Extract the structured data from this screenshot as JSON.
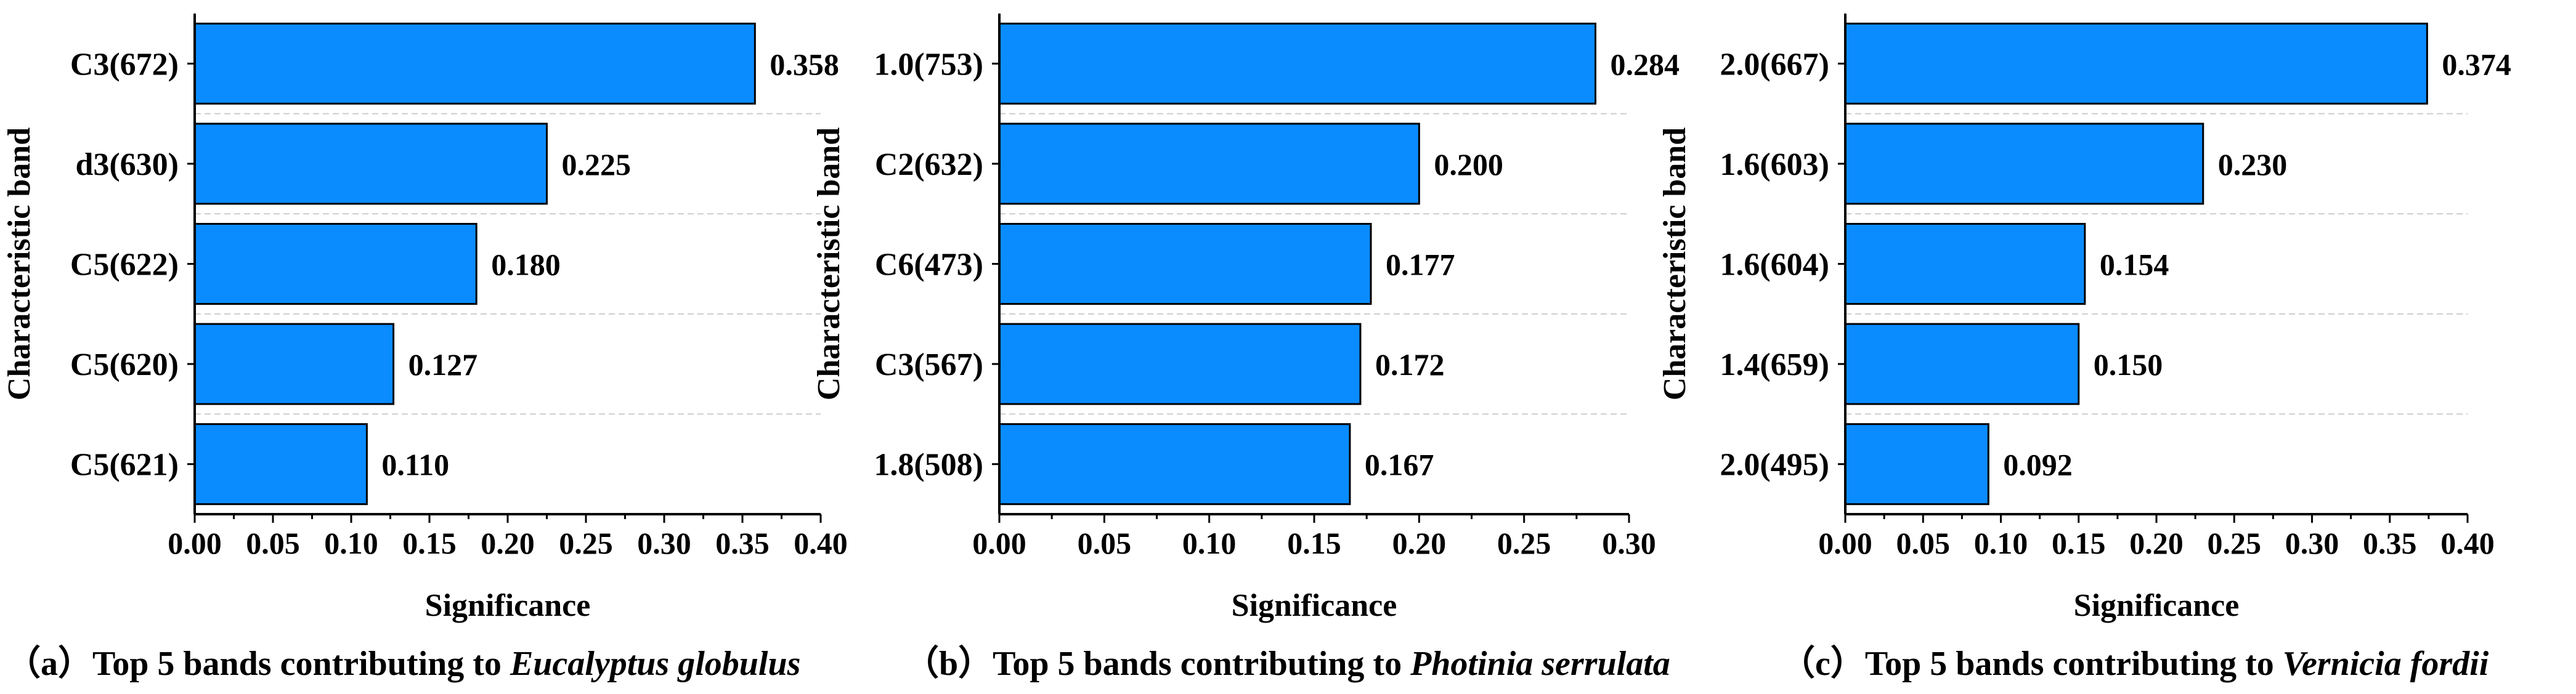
{
  "style": {
    "bar_color": "#0a8cff",
    "bar_stroke": "#000000",
    "grid_color": "#cccccc"
  },
  "chart_data": [
    {
      "type": "bar",
      "orientation": "horizontal",
      "categories": [
        "C3(672)",
        "d3(630)",
        "C5(622)",
        "C5(620)",
        "C5(621)"
      ],
      "values": [
        0.358,
        0.225,
        0.18,
        0.127,
        0.11
      ],
      "value_labels": [
        "0.358",
        "0.225",
        "0.180",
        "0.127",
        "0.110"
      ],
      "xlabel": "Significance",
      "ylabel": "Characteristic band",
      "xlim": [
        0,
        0.4
      ],
      "xticks": [
        0,
        0.05,
        0.1,
        0.15,
        0.2,
        0.25,
        0.3,
        0.35,
        0.4
      ],
      "xtick_labels": [
        "0.00",
        "0.05",
        "0.10",
        "0.15",
        "0.20",
        "0.25",
        "0.30",
        "0.35",
        "0.40"
      ],
      "grid": "horizontal dashed",
      "caption": {
        "prefix": "（a）Top 5 bands contributing to ",
        "species": "Eucalyptus globulus"
      }
    },
    {
      "type": "bar",
      "orientation": "horizontal",
      "categories": [
        "1.0(753)",
        "C2(632)",
        "C6(473)",
        "C3(567)",
        "1.8(508)"
      ],
      "values": [
        0.284,
        0.2,
        0.177,
        0.172,
        0.167
      ],
      "value_labels": [
        "0.284",
        "0.200",
        "0.177",
        "0.172",
        "0.167"
      ],
      "xlabel": "Significance",
      "ylabel": "Characteristic band",
      "xlim": [
        0,
        0.3
      ],
      "xticks": [
        0,
        0.05,
        0.1,
        0.15,
        0.2,
        0.25,
        0.3
      ],
      "xtick_labels": [
        "0.00",
        "0.05",
        "0.10",
        "0.15",
        "0.20",
        "0.25",
        "0.30"
      ],
      "grid": "horizontal dashed",
      "caption": {
        "prefix": "（b）Top 5 bands contributing to ",
        "species": "Photinia serrulata"
      }
    },
    {
      "type": "bar",
      "orientation": "horizontal",
      "categories": [
        "2.0(667)",
        "1.6(603)",
        "1.6(604)",
        "1.4(659)",
        "2.0(495)"
      ],
      "values": [
        0.374,
        0.23,
        0.154,
        0.15,
        0.092
      ],
      "value_labels": [
        "0.374",
        "0.230",
        "0.154",
        "0.150",
        "0.092"
      ],
      "xlabel": "Significance",
      "ylabel": "Characteristic band",
      "xlim": [
        0,
        0.4
      ],
      "xticks": [
        0,
        0.05,
        0.1,
        0.15,
        0.2,
        0.25,
        0.3,
        0.35,
        0.4
      ],
      "xtick_labels": [
        "0.00",
        "0.05",
        "0.10",
        "0.15",
        "0.20",
        "0.25",
        "0.30",
        "0.35",
        "0.40"
      ],
      "grid": "horizontal dashed",
      "caption": {
        "prefix": "（c）Top 5 bands contributing to ",
        "species": "Vernicia fordii"
      }
    }
  ]
}
